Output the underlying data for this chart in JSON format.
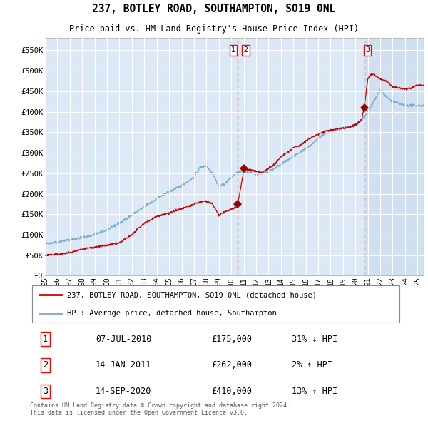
{
  "title": "237, BOTLEY ROAD, SOUTHAMPTON, SO19 0NL",
  "subtitle": "Price paid vs. HM Land Registry's House Price Index (HPI)",
  "ylabel_ticks": [
    "£0",
    "£50K",
    "£100K",
    "£150K",
    "£200K",
    "£250K",
    "£300K",
    "£350K",
    "£400K",
    "£450K",
    "£500K",
    "£550K"
  ],
  "ytick_values": [
    0,
    50000,
    100000,
    150000,
    200000,
    250000,
    300000,
    350000,
    400000,
    450000,
    500000,
    550000
  ],
  "ylim": [
    0,
    580000
  ],
  "background_color": "#ffffff",
  "plot_bg_color": "#dce8f5",
  "grid_color": "#ffffff",
  "red_line_color": "#cc0000",
  "blue_line_color": "#7aadd4",
  "sale_marker_color": "#990000",
  "vline_color": "#cc0000",
  "legend_entries": [
    "237, BOTLEY ROAD, SOUTHAMPTON, SO19 0NL (detached house)",
    "HPI: Average price, detached house, Southampton"
  ],
  "sales": [
    {
      "label": "1",
      "date_num": 2010.52,
      "price": 175000,
      "hpi_price": 253000
    },
    {
      "label": "2",
      "date_num": 2011.04,
      "price": 262000,
      "hpi_price": 260000
    },
    {
      "label": "3",
      "date_num": 2020.71,
      "price": 410000,
      "hpi_price": 363000
    }
  ],
  "sale_annotations": [
    {
      "num": "1",
      "date": "07-JUL-2010",
      "price": "£175,000",
      "change": "31% ↓ HPI"
    },
    {
      "num": "2",
      "date": "14-JAN-2011",
      "price": "£262,000",
      "change": "2% ↑ HPI"
    },
    {
      "num": "3",
      "date": "14-SEP-2020",
      "price": "£410,000",
      "change": "13% ↑ HPI"
    }
  ],
  "vline_positions": [
    2010.52,
    2020.71
  ],
  "footer": "Contains HM Land Registry data © Crown copyright and database right 2024.\nThis data is licensed under the Open Government Licence v3.0.",
  "xmin": 1995.0,
  "xmax": 2025.5,
  "shade_start": 2020.71
}
